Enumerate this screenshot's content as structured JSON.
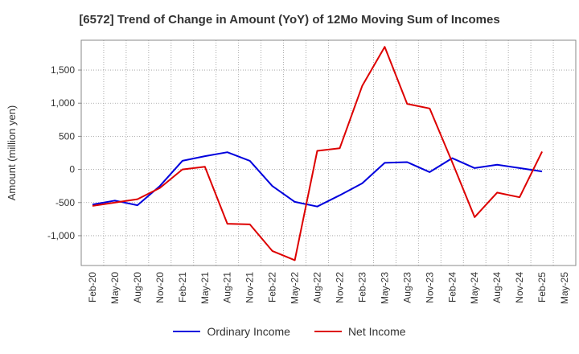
{
  "chart_data": {
    "type": "line",
    "title": "[6572]  Trend of Change in Amount (YoY) of 12Mo Moving Sum of Incomes",
    "ylabel": "Amount (million yen)",
    "xlabel": "",
    "ylim": [
      -1450,
      1950
    ],
    "yticks": [
      -1000,
      -500,
      0,
      500,
      1000,
      1500
    ],
    "ytick_labels": [
      "-1,000",
      "-500",
      "0",
      "500",
      "1,000",
      "1,500"
    ],
    "x": [
      "Feb-20",
      "May-20",
      "Aug-20",
      "Nov-20",
      "Feb-21",
      "May-21",
      "Aug-21",
      "Nov-21",
      "Feb-22",
      "May-22",
      "Aug-22",
      "Nov-22",
      "Feb-23",
      "May-23",
      "Aug-23",
      "Nov-23",
      "Feb-24",
      "May-24",
      "Aug-24",
      "Nov-24",
      "Feb-25",
      "May-25"
    ],
    "grid": true,
    "legend_position": "bottom",
    "series": [
      {
        "name": "Ordinary Income",
        "color": "#0000dd",
        "values": [
          -530,
          -470,
          -540,
          -250,
          130,
          200,
          260,
          130,
          -250,
          -490,
          -560,
          -390,
          -210,
          100,
          110,
          -40,
          170,
          20,
          70,
          20,
          -30,
          null
        ]
      },
      {
        "name": "Net Income",
        "color": "#dd0000",
        "values": [
          -550,
          -500,
          -450,
          -280,
          0,
          40,
          -820,
          -830,
          -1230,
          -1370,
          280,
          320,
          1260,
          1850,
          990,
          920,
          110,
          -720,
          -350,
          -420,
          270,
          null
        ]
      }
    ]
  }
}
